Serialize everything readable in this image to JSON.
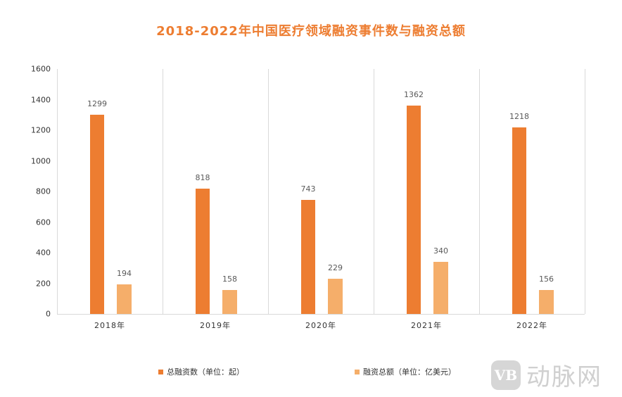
{
  "chart_data": {
    "type": "bar",
    "title": "2018-2022年中国医疗领域融资事件数与融资总额",
    "categories": [
      "2018年",
      "2019年",
      "2020年",
      "2021年",
      "2022年"
    ],
    "series": [
      {
        "name": "总融资数（单位：起）",
        "values": [
          1299,
          818,
          743,
          1362,
          1218
        ],
        "color": "#ED7D31"
      },
      {
        "name": "融资总额（单位：亿美元）",
        "values": [
          194,
          158,
          229,
          340,
          156
        ],
        "color": "#F5AE6A"
      }
    ],
    "xlabel": "",
    "ylabel": "",
    "ylim": [
      0,
      1600
    ],
    "yticks": [
      "1600",
      "1400",
      "1200",
      "1000",
      "800",
      "600",
      "400",
      "200",
      "0"
    ],
    "grid": "vertical category separators",
    "legend_position": "bottom"
  },
  "legend": {
    "items": [
      "总融资数（单位：起）",
      "融资总额（单位：亿美元）"
    ]
  },
  "watermark": {
    "logo": "VB",
    "text": "动脉网"
  },
  "labels": {
    "s1": [
      "1299",
      "818",
      "743",
      "1362",
      "1218"
    ],
    "s2": [
      "194",
      "158",
      "229",
      "340",
      "156"
    ]
  }
}
